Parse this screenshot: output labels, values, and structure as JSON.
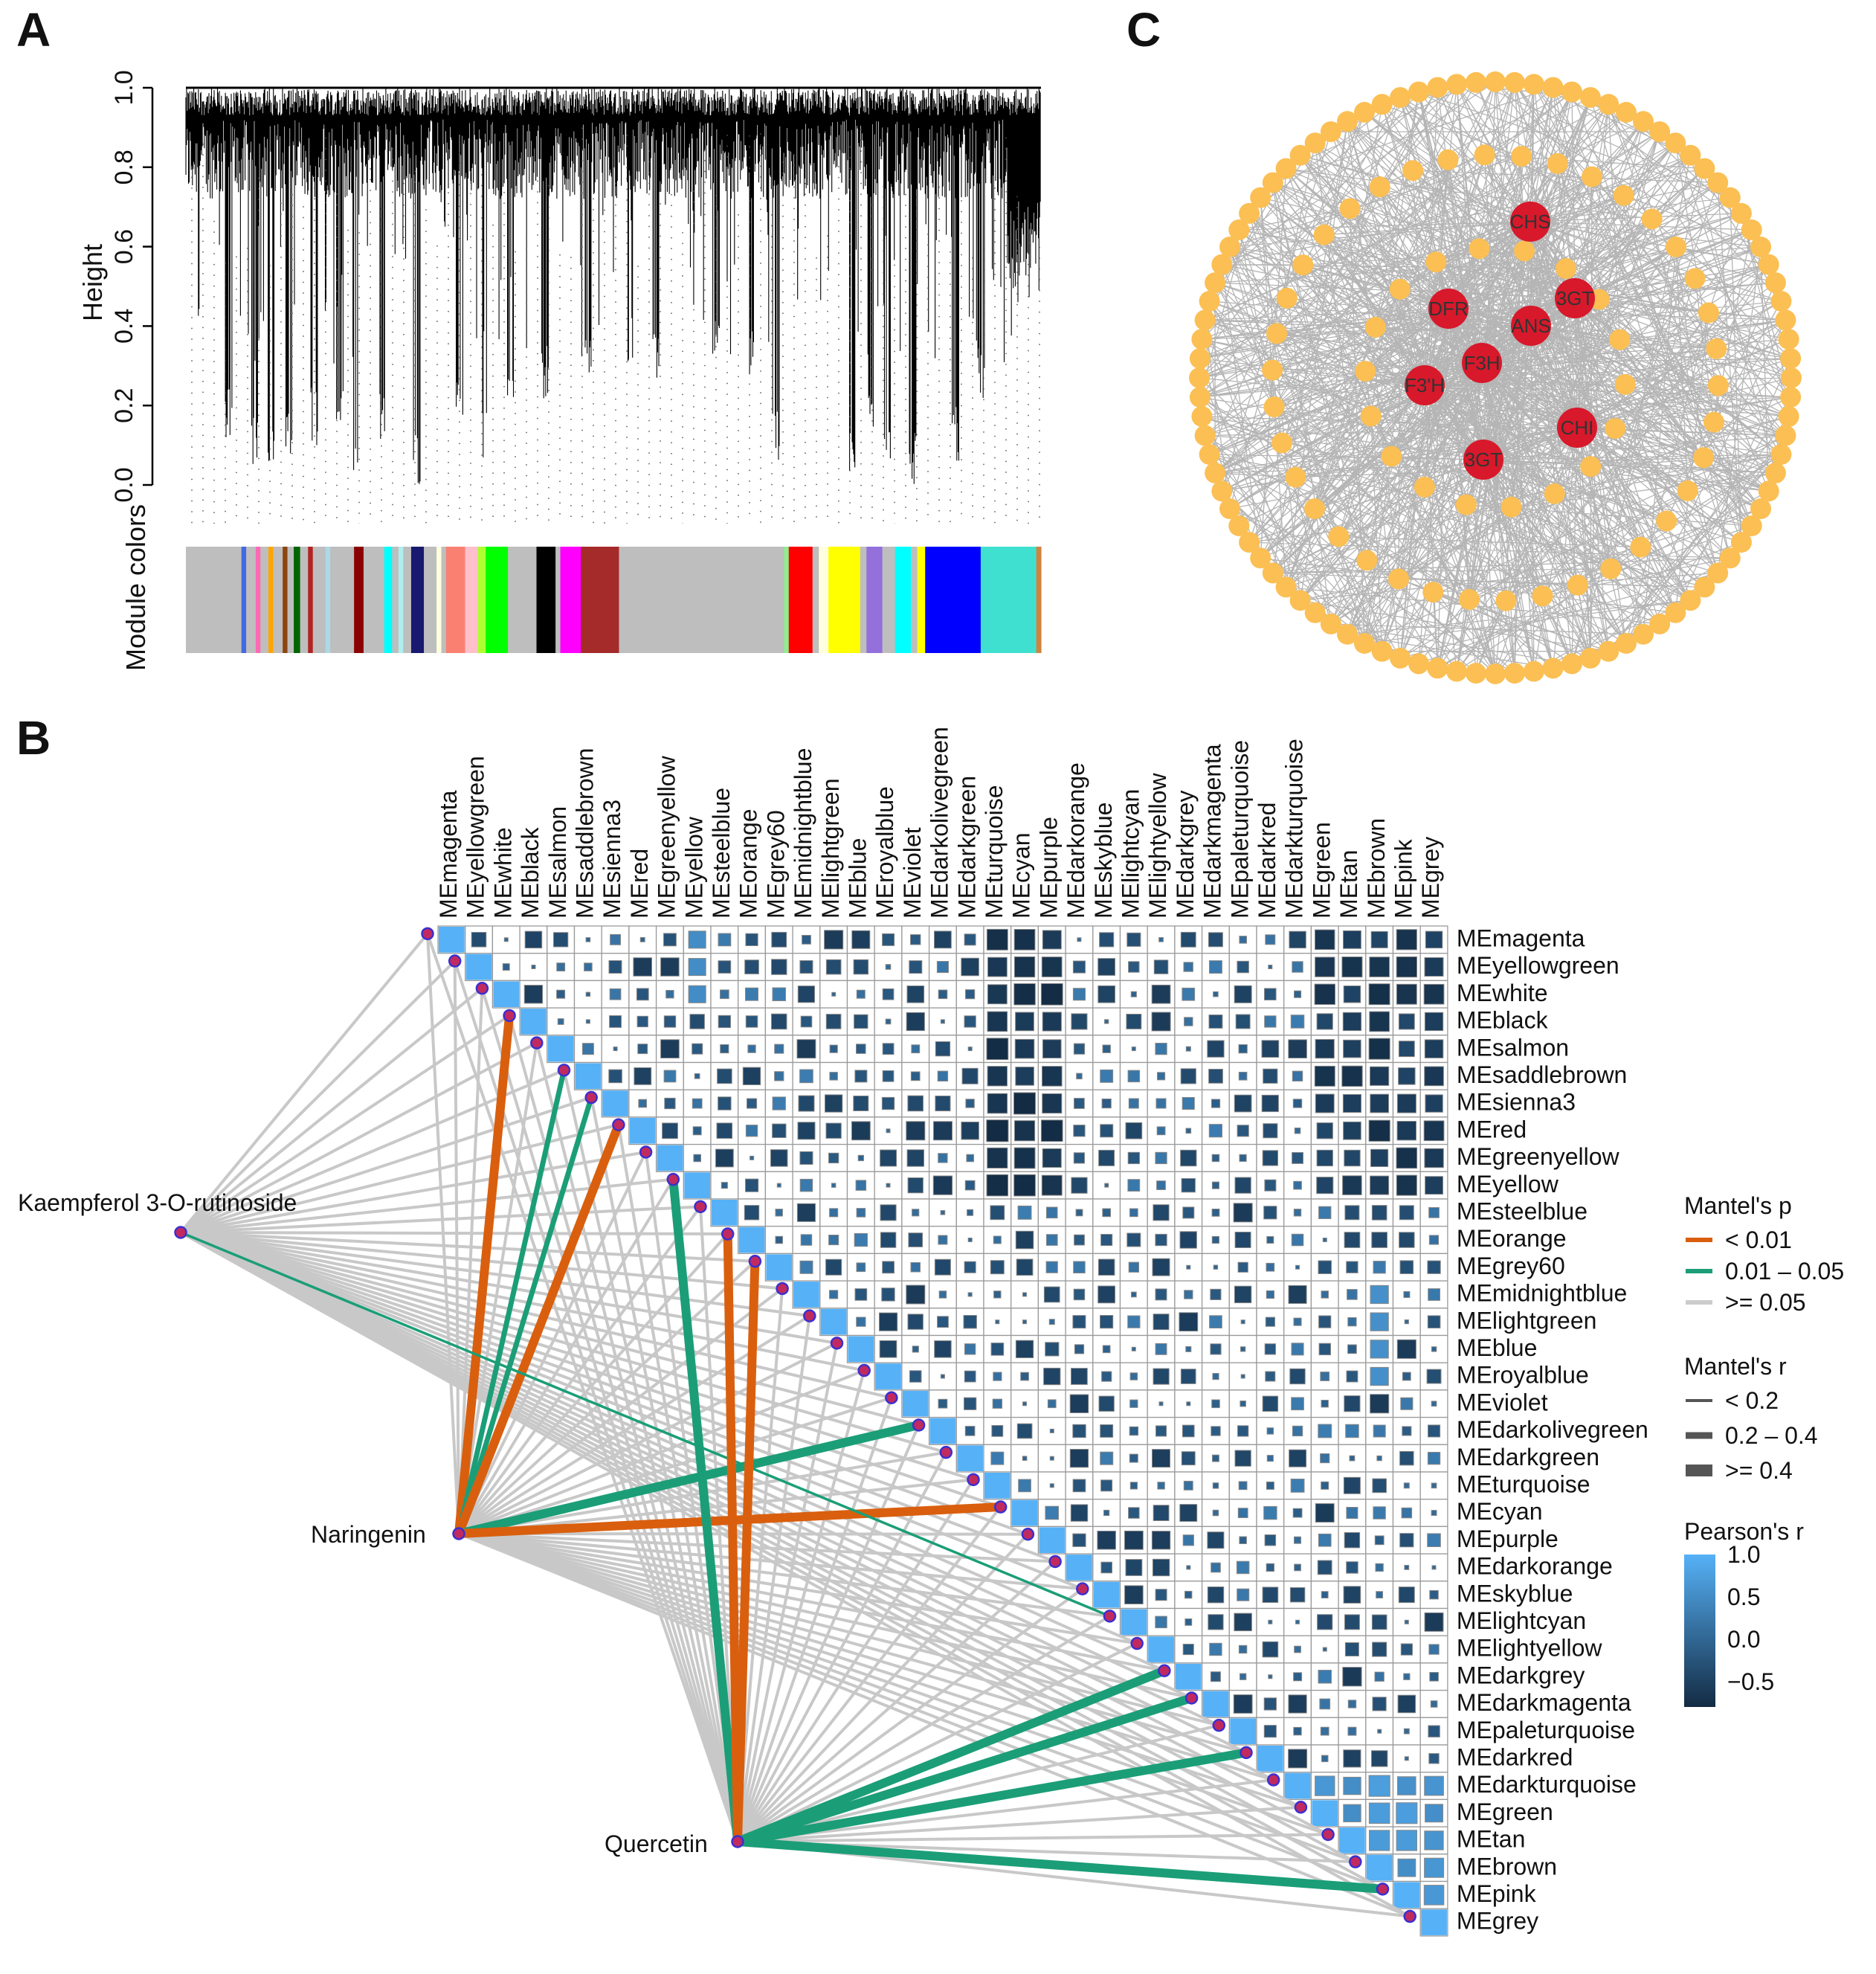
{
  "panels": {
    "a": "A",
    "b": "B",
    "c": "C"
  },
  "chart_data": [
    {
      "panel": "A",
      "type": "dendrogram",
      "ylabel": "Height",
      "ylim": [
        0.0,
        1.0
      ],
      "yticks": [
        "0.0",
        "0.2",
        "0.4",
        "0.6",
        "0.8",
        "1.0"
      ],
      "color_bar_label": "Module colors",
      "color_bar_segments": [
        {
          "color": "#bebebe",
          "w": 3.5
        },
        {
          "color": "#4169e1",
          "w": 0.3
        },
        {
          "color": "#bebebe",
          "w": 0.6
        },
        {
          "color": "#ff69b4",
          "w": 0.3
        },
        {
          "color": "#bebebe",
          "w": 0.5
        },
        {
          "color": "#ffa500",
          "w": 0.3
        },
        {
          "color": "#bebebe",
          "w": 0.6
        },
        {
          "color": "#8b4513",
          "w": 0.3
        },
        {
          "color": "#bebebe",
          "w": 0.4
        },
        {
          "color": "#006400",
          "w": 0.4
        },
        {
          "color": "#bebebe",
          "w": 0.5
        },
        {
          "color": "#b22222",
          "w": 0.3
        },
        {
          "color": "#bebebe",
          "w": 0.8
        },
        {
          "color": "#add8e6",
          "w": 0.3
        },
        {
          "color": "#bebebe",
          "w": 1.5
        },
        {
          "color": "#8b0000",
          "w": 0.6
        },
        {
          "color": "#bebebe",
          "w": 1.3
        },
        {
          "color": "#00ffff",
          "w": 0.5
        },
        {
          "color": "#bebebe",
          "w": 0.4
        },
        {
          "color": "#afeeee",
          "w": 0.3
        },
        {
          "color": "#bebebe",
          "w": 0.5
        },
        {
          "color": "#191970",
          "w": 0.8
        },
        {
          "color": "#bebebe",
          "w": 0.8
        },
        {
          "color": "#ffffe0",
          "w": 0.3
        },
        {
          "color": "#bebebe",
          "w": 0.3
        },
        {
          "color": "#fa8072",
          "w": 1.2
        },
        {
          "color": "#ffc0cb",
          "w": 0.8
        },
        {
          "color": "#adff2f",
          "w": 0.5
        },
        {
          "color": "#00ff00",
          "w": 1.4
        },
        {
          "color": "#bebebe",
          "w": 1.8
        },
        {
          "color": "#000000",
          "w": 1.2
        },
        {
          "color": "#bebebe",
          "w": 0.3
        },
        {
          "color": "#ff00ff",
          "w": 1.3
        },
        {
          "color": "#a52a2a",
          "w": 2.4
        },
        {
          "color": "#bebebe",
          "w": 10.4
        },
        {
          "color": "#90ee90",
          "w": 0.3
        },
        {
          "color": "#ff0000",
          "w": 1.5
        },
        {
          "color": "#bebebe",
          "w": 0.4
        },
        {
          "color": "#ffffe0",
          "w": 0.6
        },
        {
          "color": "#ffff00",
          "w": 2.0
        },
        {
          "color": "#bebebe",
          "w": 0.4
        },
        {
          "color": "#9370db",
          "w": 1.0
        },
        {
          "color": "#bebebe",
          "w": 0.8
        },
        {
          "color": "#00ffff",
          "w": 1.0
        },
        {
          "color": "#bebebe",
          "w": 0.4
        },
        {
          "color": "#ffff00",
          "w": 0.5
        },
        {
          "color": "#0000ff",
          "w": 3.5
        },
        {
          "color": "#40e0d0",
          "w": 3.5
        },
        {
          "color": "#cd853f",
          "w": 0.3
        }
      ]
    },
    {
      "panel": "B",
      "type": "heatmap",
      "modules": [
        "MEmagenta",
        "MEyellowgreen",
        "MEwhite",
        "MEblack",
        "MEsalmon",
        "MEsaddlebrown",
        "MEsienna3",
        "MEred",
        "MEgreenyellow",
        "MEyellow",
        "MEsteelblue",
        "MEorange",
        "MEgrey60",
        "MEmidnightblue",
        "MElightgreen",
        "MEblue",
        "MEroyalblue",
        "MEviolet",
        "MEdarkolivegreen",
        "MEdarkgreen",
        "MEturquoise",
        "MEcyan",
        "MEpurple",
        "MEdarkorange",
        "MEskyblue",
        "MElightcyan",
        "MElightyellow",
        "MEdarkgrey",
        "MEdarkmagenta",
        "MEpaleturquoise",
        "MEdarkred",
        "MEdarkturquoise",
        "MEgreen",
        "MEtan",
        "MEbrown",
        "MEpink",
        "MEgrey"
      ],
      "sources": [
        "Kaempferol 3-O-rutinoside",
        "Naringenin",
        "Quercetin"
      ],
      "significant_links": [
        {
          "source": 1,
          "target": 3,
          "p": "< 0.01",
          "r": ">= 0.4"
        },
        {
          "source": 1,
          "target": 5,
          "p": "0.01 – 0.05",
          "r": "0.2 – 0.4"
        },
        {
          "source": 1,
          "target": 6,
          "p": "0.01 – 0.05",
          "r": "0.2 – 0.4"
        },
        {
          "source": 1,
          "target": 7,
          "p": "< 0.01",
          "r": ">= 0.4"
        },
        {
          "source": 1,
          "target": 18,
          "p": "0.01 – 0.05",
          "r": ">= 0.4"
        },
        {
          "source": 1,
          "target": 21,
          "p": "< 0.01",
          "r": ">= 0.4"
        },
        {
          "source": 0,
          "target": 25,
          "p": "0.01 – 0.05",
          "r": "< 0.2"
        },
        {
          "source": 2,
          "target": 9,
          "p": "0.01 – 0.05",
          "r": ">= 0.4"
        },
        {
          "source": 2,
          "target": 11,
          "p": "< 0.01",
          "r": ">= 0.4"
        },
        {
          "source": 2,
          "target": 12,
          "p": "< 0.01",
          "r": ">= 0.4"
        },
        {
          "source": 2,
          "target": 27,
          "p": "0.01 – 0.05",
          "r": ">= 0.4"
        },
        {
          "source": 2,
          "target": 28,
          "p": "0.01 – 0.05",
          "r": ">= 0.4"
        },
        {
          "source": 2,
          "target": 30,
          "p": "0.01 – 0.05",
          "r": ">= 0.4"
        },
        {
          "source": 2,
          "target": 35,
          "p": "0.01 – 0.05",
          "r": ">= 0.4"
        }
      ],
      "legend": {
        "mantel_p": {
          "title": "Mantel's p",
          "items": [
            "< 0.01",
            "0.01 – 0.05",
            ">= 0.05"
          ],
          "colors": [
            "#d95f0e",
            "#1b9e77",
            "#cccccc"
          ]
        },
        "mantel_r": {
          "title": "Mantel's r",
          "items": [
            "< 0.2",
            "0.2 – 0.4",
            ">= 0.4"
          ]
        },
        "pearson": {
          "title": "Pearson's r",
          "ticks": [
            "1.0",
            "0.5",
            "0.0",
            "−0.5"
          ],
          "range": [
            -0.8,
            1.0
          ]
        }
      }
    },
    {
      "panel": "C",
      "type": "network",
      "hub_genes": [
        "CHS",
        "3GT",
        "DFR",
        "ANS",
        "F3H",
        "F3'H",
        "CHI",
        "3GT"
      ],
      "counts": {
        "outer_ring": 96,
        "middle_ring": 38,
        "inner_ring": 18
      }
    }
  ],
  "colors": {
    "hub": "#d7192b",
    "node": "#fbbf54",
    "edge": "#a8a8a8"
  }
}
